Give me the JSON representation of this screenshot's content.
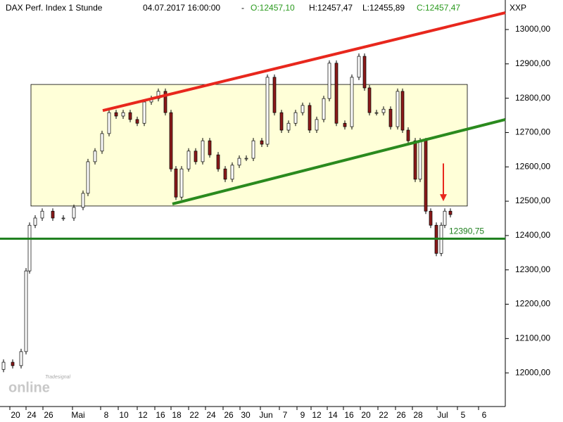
{
  "chart_data": {
    "type": "candlestick",
    "title": "DAX Perf. Index 1 Stunde",
    "timestamp": "04.07.2017 16:00:00",
    "separator": "-",
    "ohlc_labels": [
      "O:12457,10",
      "H:12457,47",
      "L:12455,89",
      "C:12457,47"
    ],
    "axis_label": "XXP",
    "watermark": [
      "Tradesignal",
      "online"
    ],
    "xlim": [
      0,
      71.8
    ],
    "ylim": [
      11902,
      13086
    ],
    "yticks": [
      {
        "value": 12000,
        "label": "12000,00"
      },
      {
        "value": 12100,
        "label": "12100,00"
      },
      {
        "value": 12200,
        "label": "12200,00"
      },
      {
        "value": 12300,
        "label": "12300,00"
      },
      {
        "value": 12400,
        "label": "12400,00"
      },
      {
        "value": 12500,
        "label": "12500,00"
      },
      {
        "value": 12600,
        "label": "12600,00"
      },
      {
        "value": 12700,
        "label": "12700,00"
      },
      {
        "value": 12800,
        "label": "12800,00"
      },
      {
        "value": 12900,
        "label": "12900,00"
      },
      {
        "value": 13000,
        "label": "13000,00"
      }
    ],
    "xticks": [
      {
        "value": 2.2,
        "label": "20"
      },
      {
        "value": 4.5,
        "label": "24"
      },
      {
        "value": 6.9,
        "label": "26"
      },
      {
        "value": 11.1,
        "label": "Mai"
      },
      {
        "value": 15.1,
        "label": "8"
      },
      {
        "value": 17.6,
        "label": "10"
      },
      {
        "value": 20.3,
        "label": "12"
      },
      {
        "value": 22.8,
        "label": "16"
      },
      {
        "value": 25.1,
        "label": "18"
      },
      {
        "value": 27.6,
        "label": "22"
      },
      {
        "value": 30.0,
        "label": "24"
      },
      {
        "value": 32.5,
        "label": "26"
      },
      {
        "value": 34.9,
        "label": "30"
      },
      {
        "value": 37.8,
        "label": "Jun"
      },
      {
        "value": 40.5,
        "label": "7"
      },
      {
        "value": 43.0,
        "label": "9"
      },
      {
        "value": 45.0,
        "label": "12"
      },
      {
        "value": 47.3,
        "label": "14"
      },
      {
        "value": 49.6,
        "label": "16"
      },
      {
        "value": 52.0,
        "label": "20"
      },
      {
        "value": 54.5,
        "label": "22"
      },
      {
        "value": 57.0,
        "label": "26"
      },
      {
        "value": 59.4,
        "label": "28"
      },
      {
        "value": 62.9,
        "label": "Jul"
      },
      {
        "value": 65.8,
        "label": "5"
      },
      {
        "value": 68.8,
        "label": "6"
      }
    ],
    "x": [
      0.5,
      1.8,
      3.0,
      3.7,
      4.2,
      5.0,
      6.0,
      7.5,
      9.0,
      10.5,
      11.8,
      12.5,
      13.5,
      14.5,
      15.5,
      16.5,
      17.5,
      18.5,
      19.5,
      20.5,
      21.5,
      22.5,
      23.5,
      24.3,
      25.0,
      25.8,
      26.8,
      27.8,
      28.8,
      29.8,
      31.0,
      32.0,
      33.0,
      34.0,
      35.0,
      36.0,
      37.2,
      38.0,
      39.0,
      40.0,
      41.0,
      42.0,
      43.0,
      44.0,
      45.0,
      46.0,
      46.8,
      47.8,
      49.0,
      50.0,
      51.0,
      51.8,
      52.5,
      53.5,
      54.5,
      55.5,
      56.5,
      57.2,
      58.0,
      59.0,
      59.7,
      60.5,
      61.2,
      62.0,
      62.7,
      63.2,
      64.0
    ],
    "open": [
      12010,
      12031,
      12021,
      12062,
      12297,
      12430,
      12451,
      12471,
      12451,
      12451,
      12482,
      12523,
      12615,
      12646,
      12697,
      12758,
      12748,
      12758,
      12738,
      12727,
      12789,
      12799,
      12820,
      12758,
      12594,
      12512,
      12594,
      12646,
      12615,
      12676,
      12635,
      12594,
      12564,
      12605,
      12625,
      12625,
      12676,
      12666,
      12861,
      12758,
      12707,
      12727,
      12758,
      12779,
      12707,
      12738,
      12799,
      12902,
      12727,
      12717,
      12861,
      12922,
      12830,
      12758,
      12758,
      12768,
      12717,
      12820,
      12707,
      12676,
      12564,
      12676,
      12471,
      12430,
      12348,
      12430,
      12471
    ],
    "close": [
      12031,
      12021,
      12062,
      12297,
      12430,
      12451,
      12471,
      12451,
      12451,
      12482,
      12523,
      12615,
      12646,
      12697,
      12758,
      12748,
      12758,
      12738,
      12727,
      12789,
      12799,
      12820,
      12758,
      12594,
      12512,
      12594,
      12646,
      12615,
      12676,
      12635,
      12594,
      12564,
      12605,
      12625,
      12625,
      12676,
      12666,
      12861,
      12758,
      12707,
      12727,
      12758,
      12779,
      12707,
      12738,
      12799,
      12902,
      12727,
      12717,
      12861,
      12922,
      12830,
      12758,
      12758,
      12768,
      12717,
      12820,
      12707,
      12676,
      12564,
      12676,
      12471,
      12430,
      12348,
      12430,
      12471,
      12461
    ],
    "up_color": "#ffffff",
    "down_color": "#8b1a1a",
    "box": {
      "x": [
        4.4,
        66.4
      ],
      "y": [
        12486,
        12840
      ],
      "color": "#ffffd8"
    },
    "trendlines": [
      {
        "x": [
          14.6,
          71.8
        ],
        "y": [
          12764,
          13049
        ],
        "color": "#e8271d"
      },
      {
        "x": [
          24.5,
          71.8
        ],
        "y": [
          12492,
          12738
        ],
        "color": "#2a8a1e"
      }
    ],
    "hline": {
      "value": 12390.75,
      "label": "12390,75",
      "color": "#1d7f1d"
    },
    "arrow": {
      "x": 63.0,
      "y": [
        12610,
        12500
      ],
      "color": "#e8271d"
    }
  }
}
